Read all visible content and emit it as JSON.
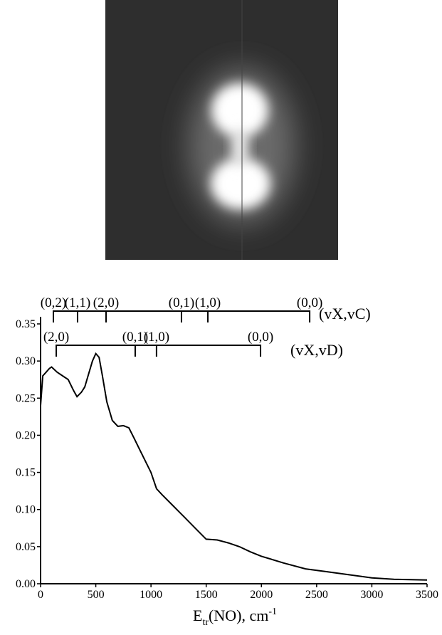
{
  "chart_data": {
    "type": "line",
    "x_label": {
      "main": "E",
      "sub": "tr",
      "rest": "(NO), cm",
      "sup": "-1"
    },
    "x": [
      0,
      20,
      50,
      80,
      100,
      150,
      200,
      250,
      300,
      330,
      370,
      400,
      430,
      470,
      500,
      530,
      560,
      600,
      650,
      700,
      750,
      800,
      850,
      900,
      1000,
      1050,
      1100,
      1200,
      1300,
      1400,
      1500,
      1600,
      1700,
      1800,
      1900,
      2000,
      2200,
      2400,
      2600,
      2800,
      3000,
      3200,
      3500
    ],
    "series": [
      {
        "color": "#000000",
        "values": [
          0.24,
          0.28,
          0.285,
          0.29,
          0.292,
          0.285,
          0.28,
          0.275,
          0.26,
          0.252,
          0.258,
          0.265,
          0.28,
          0.3,
          0.31,
          0.305,
          0.28,
          0.245,
          0.22,
          0.212,
          0.213,
          0.21,
          0.195,
          0.18,
          0.15,
          0.128,
          0.12,
          0.105,
          0.09,
          0.075,
          0.06,
          0.059,
          0.055,
          0.05,
          0.043,
          0.037,
          0.028,
          0.02,
          0.016,
          0.012,
          0.008,
          0.006,
          0.005
        ]
      }
    ],
    "xlim": [
      0,
      3500
    ],
    "xticks": [
      0,
      500,
      1000,
      1500,
      2000,
      2500,
      3000,
      3500
    ],
    "ylim": [
      0,
      0.35
    ],
    "yticks": [
      {
        "value": 0,
        "label": "0.00"
      },
      {
        "value": 0.05,
        "label": "0.05"
      },
      {
        "value": 0.1,
        "label": "0.10"
      },
      {
        "value": 0.15,
        "label": "0.15"
      },
      {
        "value": 0.2,
        "label": "0.20"
      },
      {
        "value": 0.25,
        "label": "0.25"
      },
      {
        "value": 0.3,
        "label": "0.30"
      },
      {
        "value": 0.35,
        "label": "0.35"
      }
    ],
    "combs": [
      {
        "name": "(vX,vC)",
        "positions": [
          116,
          335,
          593,
          1276,
          1515,
          2437
        ],
        "labels": [
          "(0,2)",
          "(1,1)",
          "(2,0)",
          "(0,1)",
          "(1,0)",
          "(0,0)"
        ]
      },
      {
        "name": "(vX,vD)",
        "positions": [
          142,
          857,
          1050,
          1992
        ],
        "labels": [
          "(2,0)",
          "(0,1)",
          "(1,0)",
          "(0,0)"
        ]
      }
    ]
  }
}
